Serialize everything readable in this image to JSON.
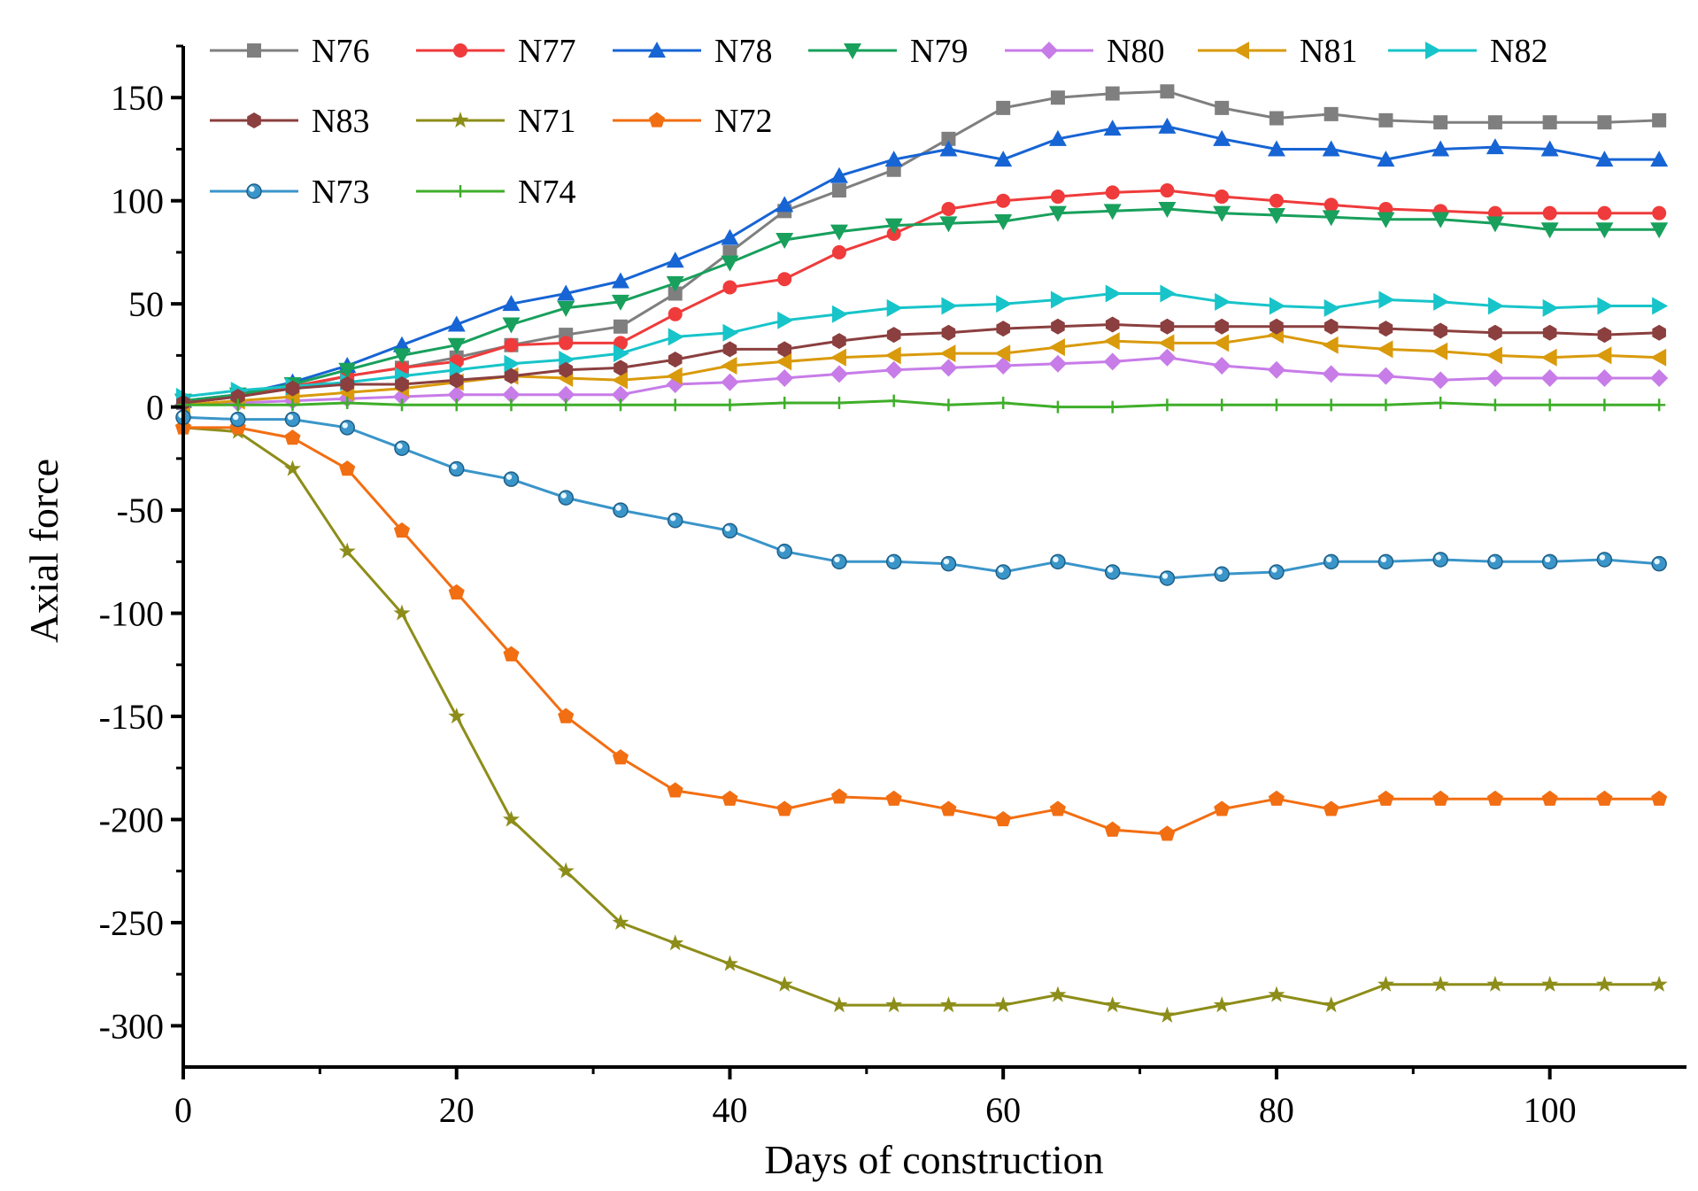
{
  "chart_data": {
    "type": "line",
    "title": "",
    "xlabel": "Days of construction",
    "ylabel": "Axial force",
    "xlim": [
      0,
      110
    ],
    "ylim": [
      -320,
      175
    ],
    "xticks": [
      0,
      20,
      40,
      60,
      80,
      100
    ],
    "yticks": [
      150,
      100,
      50,
      0,
      -50,
      -100,
      -150,
      -200,
      -250,
      -300
    ],
    "grid": false,
    "legend_position": "top-left",
    "x": [
      0,
      4,
      8,
      12,
      16,
      20,
      24,
      28,
      32,
      36,
      40,
      44,
      48,
      52,
      56,
      60,
      64,
      68,
      72,
      76,
      80,
      84,
      88,
      92,
      96,
      100,
      104,
      108
    ],
    "series": [
      {
        "name": "N76",
        "color": "#7f7f7f",
        "marker": "square",
        "values": [
          2,
          5,
          9,
          15,
          19,
          24,
          30,
          35,
          39,
          55,
          75,
          95,
          105,
          115,
          130,
          145,
          150,
          152,
          153,
          145,
          140,
          142,
          139,
          138,
          138,
          138,
          138,
          139
        ]
      },
      {
        "name": "N77",
        "color": "#ef3b3b",
        "marker": "circle",
        "values": [
          2,
          5,
          10,
          15,
          19,
          22,
          30,
          31,
          31,
          45,
          58,
          62,
          75,
          84,
          96,
          100,
          102,
          104,
          105,
          102,
          100,
          98,
          96,
          95,
          94,
          94,
          94,
          94
        ]
      },
      {
        "name": "N78",
        "color": "#1764d4",
        "marker": "triangle-up",
        "values": [
          3,
          6,
          12,
          20,
          30,
          40,
          50,
          55,
          61,
          71,
          82,
          98,
          112,
          120,
          125,
          120,
          130,
          135,
          136,
          130,
          125,
          125,
          120,
          125,
          126,
          125,
          120,
          120
        ]
      },
      {
        "name": "N79",
        "color": "#18a05c",
        "marker": "triangle-down",
        "values": [
          3,
          6,
          11,
          18,
          25,
          30,
          40,
          48,
          51,
          60,
          70,
          81,
          85,
          88,
          89,
          90,
          94,
          95,
          96,
          94,
          93,
          92,
          91,
          91,
          89,
          86,
          86,
          86
        ]
      },
      {
        "name": "N80",
        "color": "#c77ce8",
        "marker": "diamond",
        "values": [
          1,
          2,
          3,
          4,
          5,
          6,
          6,
          6,
          6,
          11,
          12,
          14,
          16,
          18,
          19,
          20,
          21,
          22,
          24,
          20,
          18,
          16,
          15,
          13,
          14,
          14,
          14,
          14
        ]
      },
      {
        "name": "N81",
        "color": "#d99a0b",
        "marker": "triangle-left",
        "values": [
          1,
          3,
          5,
          7,
          9,
          12,
          15,
          14,
          13,
          15,
          20,
          22,
          24,
          25,
          26,
          26,
          29,
          32,
          31,
          31,
          35,
          30,
          28,
          27,
          25,
          24,
          25,
          24
        ]
      },
      {
        "name": "N82",
        "color": "#17c4c9",
        "marker": "triangle-right",
        "values": [
          5,
          8,
          10,
          12,
          15,
          18,
          21,
          23,
          26,
          34,
          36,
          42,
          45,
          48,
          49,
          50,
          52,
          55,
          55,
          51,
          49,
          48,
          52,
          51,
          49,
          48,
          49,
          49
        ]
      },
      {
        "name": "N83",
        "color": "#8b3f3f",
        "marker": "hexagon",
        "values": [
          2,
          5,
          9,
          11,
          11,
          13,
          15,
          18,
          19,
          23,
          28,
          28,
          32,
          35,
          36,
          38,
          39,
          40,
          39,
          39,
          39,
          39,
          38,
          37,
          36,
          36,
          35,
          36
        ]
      },
      {
        "name": "N71",
        "color": "#8d8d1a",
        "marker": "star",
        "values": [
          -10,
          -12,
          -30,
          -70,
          -100,
          -150,
          -200,
          -225,
          -250,
          -260,
          -270,
          -280,
          -290,
          -290,
          -290,
          -290,
          -285,
          -290,
          -295,
          -290,
          -285,
          -290,
          -280,
          -280,
          -280,
          -280,
          -280,
          -280
        ]
      },
      {
        "name": "N72",
        "color": "#f26e12",
        "marker": "pentagon",
        "values": [
          -10,
          -10,
          -15,
          -30,
          -60,
          -90,
          -120,
          -150,
          -170,
          -186,
          -190,
          -195,
          -189,
          -190,
          -195,
          -200,
          -195,
          -205,
          -207,
          -195,
          -190,
          -195,
          -190,
          -190,
          -190,
          -190,
          -190,
          -190
        ]
      },
      {
        "name": "N73",
        "color": "#3a95c9",
        "marker": "sphere",
        "values": [
          -5,
          -6,
          -6,
          -10,
          -20,
          -30,
          -35,
          -44,
          -50,
          -55,
          -60,
          -70,
          -75,
          -75,
          -76,
          -80,
          -75,
          -80,
          -83,
          -81,
          -80,
          -75,
          -75,
          -74,
          -75,
          -75,
          -74,
          -76
        ]
      },
      {
        "name": "N74",
        "color": "#3fae2a",
        "marker": "plus",
        "values": [
          1,
          1,
          1,
          2,
          1,
          1,
          1,
          1,
          1,
          1,
          1,
          2,
          2,
          3,
          1,
          2,
          0,
          0,
          1,
          1,
          1,
          1,
          1,
          2,
          1,
          1,
          1,
          1
        ]
      }
    ]
  }
}
